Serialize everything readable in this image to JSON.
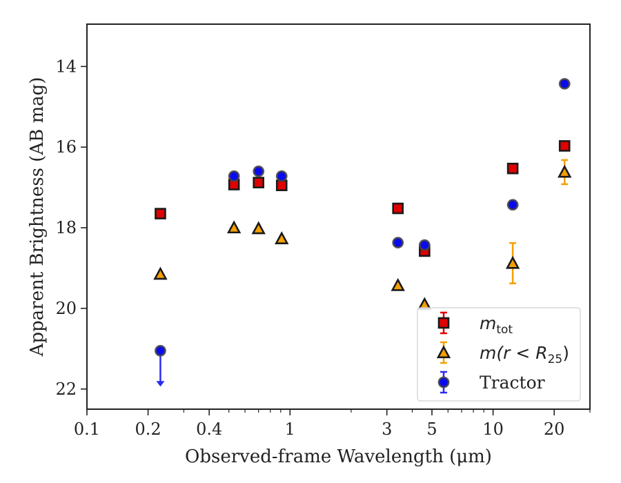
{
  "chart_data": {
    "type": "scatter",
    "xlabel": "Observed-frame Wavelength (μm)",
    "ylabel": "Apparent Brightness (AB mag)",
    "xscale": "log",
    "xlim": [
      0.1,
      30
    ],
    "ylim": [
      22.5,
      12.95
    ],
    "y_inverted": true,
    "x_ticks": [
      {
        "value": 0.1,
        "label": "0.1"
      },
      {
        "value": 0.2,
        "label": "0.2"
      },
      {
        "value": 0.4,
        "label": "0.4"
      },
      {
        "value": 1,
        "label": "1"
      },
      {
        "value": 3,
        "label": "3"
      },
      {
        "value": 5,
        "label": "5"
      },
      {
        "value": 10,
        "label": "10"
      },
      {
        "value": 20,
        "label": "20"
      }
    ],
    "y_ticks": [
      {
        "value": 14,
        "label": "14"
      },
      {
        "value": 16,
        "label": "16"
      },
      {
        "value": 18,
        "label": "18"
      },
      {
        "value": 20,
        "label": "20"
      },
      {
        "value": 22,
        "label": "22"
      }
    ],
    "legend": {
      "placement": "lower-right"
    },
    "series": [
      {
        "name": "m_tot",
        "label_main": "m",
        "label_sub": "tot",
        "marker": "square",
        "color": "#e00000",
        "edge": "#1a1a1a",
        "errcolor": "#e00000",
        "points": [
          {
            "x": 0.23,
            "y": 17.65
          },
          {
            "x": 0.53,
            "y": 16.93
          },
          {
            "x": 0.7,
            "y": 16.88
          },
          {
            "x": 0.91,
            "y": 16.95
          },
          {
            "x": 3.4,
            "y": 17.52
          },
          {
            "x": 4.6,
            "y": 18.58
          },
          {
            "x": 12.5,
            "y": 16.53
          },
          {
            "x": 22.5,
            "y": 15.97
          }
        ]
      },
      {
        "name": "m(r < R25)",
        "label_main": "m(r < R",
        "label_sub": "25",
        "label_end": ")",
        "marker": "triangle",
        "color": "#f5a000",
        "edge": "#1a1a1a",
        "errcolor": "#f5a000",
        "points": [
          {
            "x": 0.23,
            "y": 19.15
          },
          {
            "x": 0.53,
            "y": 18.0
          },
          {
            "x": 0.7,
            "y": 18.02
          },
          {
            "x": 0.91,
            "y": 18.27
          },
          {
            "x": 3.4,
            "y": 19.43
          },
          {
            "x": 4.6,
            "y": 19.9
          },
          {
            "x": 12.5,
            "y": 18.88,
            "err": 0.5
          },
          {
            "x": 22.5,
            "y": 16.62,
            "err": 0.3
          }
        ]
      },
      {
        "name": "Tractor",
        "label_main": "Tractor",
        "marker": "circle",
        "color": "#0a0af0",
        "edge": "#444444",
        "errcolor": "#2a2af0",
        "points": [
          {
            "x": 0.23,
            "y": 21.05,
            "upper_limit": true
          },
          {
            "x": 0.53,
            "y": 16.72
          },
          {
            "x": 0.7,
            "y": 16.6
          },
          {
            "x": 0.91,
            "y": 16.72
          },
          {
            "x": 3.4,
            "y": 18.37
          },
          {
            "x": 4.6,
            "y": 18.43
          },
          {
            "x": 12.5,
            "y": 17.43
          },
          {
            "x": 22.5,
            "y": 14.43
          }
        ]
      }
    ]
  }
}
